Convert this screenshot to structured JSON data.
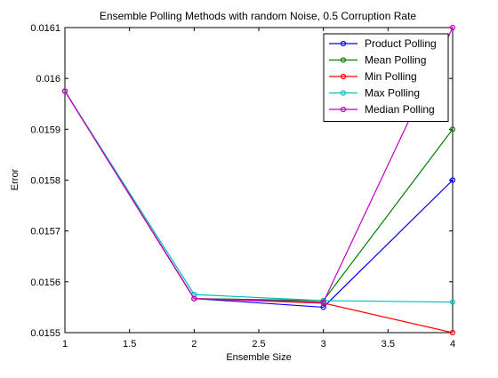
{
  "chart_data": {
    "type": "line",
    "title": "Ensemble Polling Methods with random Noise, 0.5 Corruption Rate",
    "xlabel": "Ensemble Size",
    "ylabel": "Error",
    "xlim": [
      1,
      4
    ],
    "ylim": [
      0.0155,
      0.0161
    ],
    "xticks": [
      "1",
      "1.5",
      "2",
      "2.5",
      "3",
      "3.5",
      "4"
    ],
    "yticks": [
      "0.0155",
      "0.0156",
      "0.0157",
      "0.0158",
      "0.0159",
      "0.016",
      "0.0161"
    ],
    "grid": false,
    "legend_position": "top-right",
    "x": [
      1,
      2,
      3,
      4
    ],
    "series": [
      {
        "name": "Product Polling",
        "color": "#0000ff",
        "values": [
          0.015975,
          0.015567,
          0.01555,
          0.0158
        ]
      },
      {
        "name": "Mean Polling",
        "color": "#008000",
        "values": [
          0.015975,
          0.015567,
          0.015563,
          0.0159
        ]
      },
      {
        "name": "Min Polling",
        "color": "#ff0000",
        "values": [
          0.015975,
          0.015567,
          0.015558,
          0.0155
        ]
      },
      {
        "name": "Max Polling",
        "color": "#00bfbf",
        "values": [
          0.015975,
          0.015575,
          0.015563,
          0.01556
        ]
      },
      {
        "name": "Median Polling",
        "color": "#bf00bf",
        "values": [
          0.015975,
          0.015567,
          0.01556,
          0.0161
        ]
      }
    ]
  }
}
